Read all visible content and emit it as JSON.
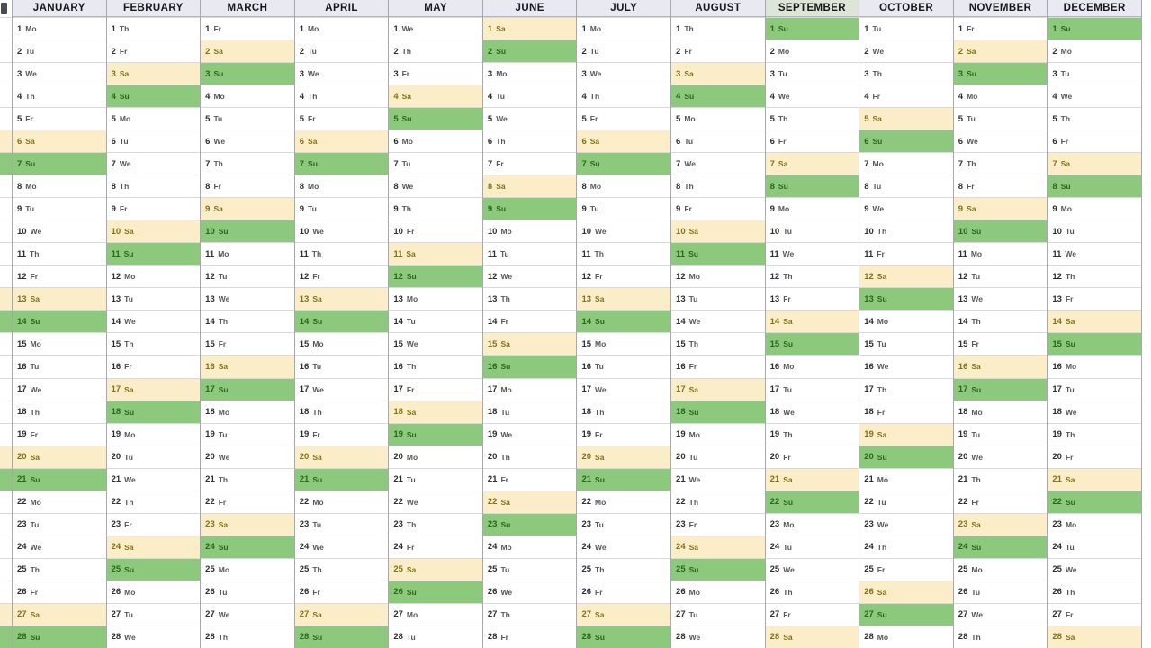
{
  "calendar": {
    "day_numbers": [
      1,
      2,
      3,
      4,
      5,
      6,
      7,
      8,
      9,
      10,
      11,
      12,
      13,
      14,
      15,
      16,
      17,
      18,
      19,
      20,
      21,
      22,
      23,
      24,
      25,
      26,
      27,
      28
    ],
    "months": [
      {
        "name": "JANUARY",
        "weekdays": [
          "Mo",
          "Tu",
          "We",
          "Th",
          "Fr",
          "Sa",
          "Su",
          "Mo",
          "Tu",
          "We",
          "Th",
          "Fr",
          "Sa",
          "Su",
          "Mo",
          "Tu",
          "We",
          "Th",
          "Fr",
          "Sa",
          "Su",
          "Mo",
          "Tu",
          "We",
          "Th",
          "Fr",
          "Sa",
          "Su"
        ]
      },
      {
        "name": "FEBRUARY",
        "weekdays": [
          "Th",
          "Fr",
          "Sa",
          "Su",
          "Mo",
          "Tu",
          "We",
          "Th",
          "Fr",
          "Sa",
          "Su",
          "Mo",
          "Tu",
          "We",
          "Th",
          "Fr",
          "Sa",
          "Su",
          "Mo",
          "Tu",
          "We",
          "Th",
          "Fr",
          "Sa",
          "Su",
          "Mo",
          "Tu",
          "We"
        ]
      },
      {
        "name": "MARCH",
        "weekdays": [
          "Fr",
          "Sa",
          "Su",
          "Mo",
          "Tu",
          "We",
          "Th",
          "Fr",
          "Sa",
          "Su",
          "Mo",
          "Tu",
          "We",
          "Th",
          "Fr",
          "Sa",
          "Su",
          "Mo",
          "Tu",
          "We",
          "Th",
          "Fr",
          "Sa",
          "Su",
          "Mo",
          "Tu",
          "We",
          "Th"
        ]
      },
      {
        "name": "APRIL",
        "weekdays": [
          "Mo",
          "Tu",
          "We",
          "Th",
          "Fr",
          "Sa",
          "Su",
          "Mo",
          "Tu",
          "We",
          "Th",
          "Fr",
          "Sa",
          "Su",
          "Mo",
          "Tu",
          "We",
          "Th",
          "Fr",
          "Sa",
          "Su",
          "Mo",
          "Tu",
          "We",
          "Th",
          "Fr",
          "Sa",
          "Su"
        ]
      },
      {
        "name": "MAY",
        "weekdays": [
          "We",
          "Th",
          "Fr",
          "Sa",
          "Su",
          "Mo",
          "Tu",
          "We",
          "Th",
          "Fr",
          "Sa",
          "Su",
          "Mo",
          "Tu",
          "We",
          "Th",
          "Fr",
          "Sa",
          "Su",
          "Mo",
          "Tu",
          "We",
          "Th",
          "Fr",
          "Sa",
          "Su",
          "Mo",
          "Tu"
        ]
      },
      {
        "name": "JUNE",
        "weekdays": [
          "Sa",
          "Su",
          "Mo",
          "Tu",
          "We",
          "Th",
          "Fr",
          "Sa",
          "Su",
          "Mo",
          "Tu",
          "We",
          "Th",
          "Fr",
          "Sa",
          "Su",
          "Mo",
          "Tu",
          "We",
          "Th",
          "Fr",
          "Sa",
          "Su",
          "Mo",
          "Tu",
          "We",
          "Th",
          "Fr"
        ]
      },
      {
        "name": "JULY",
        "weekdays": [
          "Mo",
          "Tu",
          "We",
          "Th",
          "Fr",
          "Sa",
          "Su",
          "Mo",
          "Tu",
          "We",
          "Th",
          "Fr",
          "Sa",
          "Su",
          "Mo",
          "Tu",
          "We",
          "Th",
          "Fr",
          "Sa",
          "Su",
          "Mo",
          "Tu",
          "We",
          "Th",
          "Fr",
          "Sa",
          "Su"
        ]
      },
      {
        "name": "AUGUST",
        "weekdays": [
          "Th",
          "Fr",
          "Sa",
          "Su",
          "Mo",
          "Tu",
          "We",
          "Th",
          "Fr",
          "Sa",
          "Su",
          "Mo",
          "Tu",
          "We",
          "Th",
          "Fr",
          "Sa",
          "Su",
          "Mo",
          "Tu",
          "We",
          "Th",
          "Fr",
          "Sa",
          "Su",
          "Mo",
          "Tu",
          "We"
        ]
      },
      {
        "name": "SEPTEMBER",
        "header_bg": "#dde6d6",
        "weekdays": [
          "Su",
          "Mo",
          "Tu",
          "We",
          "Th",
          "Fr",
          "Sa",
          "Su",
          "Mo",
          "Tu",
          "We",
          "Th",
          "Fr",
          "Sa",
          "Su",
          "Mo",
          "Tu",
          "We",
          "Th",
          "Fr",
          "Sa",
          "Su",
          "Mo",
          "Tu",
          "We",
          "Th",
          "Fr",
          "Sa"
        ]
      },
      {
        "name": "OCTOBER",
        "weekdays": [
          "Tu",
          "We",
          "Th",
          "Fr",
          "Sa",
          "Su",
          "Mo",
          "Tu",
          "We",
          "Th",
          "Fr",
          "Sa",
          "Su",
          "Mo",
          "Tu",
          "We",
          "Th",
          "Fr",
          "Sa",
          "Su",
          "Mo",
          "Tu",
          "We",
          "Th",
          "Fr",
          "Sa",
          "Su",
          "Mo"
        ]
      },
      {
        "name": "NOVEMBER",
        "weekdays": [
          "Fr",
          "Sa",
          "Su",
          "Mo",
          "Tu",
          "We",
          "Th",
          "Fr",
          "Sa",
          "Su",
          "Mo",
          "Tu",
          "We",
          "Th",
          "Fr",
          "Sa",
          "Su",
          "Mo",
          "Tu",
          "We",
          "Th",
          "Fr",
          "Sa",
          "Su",
          "Mo",
          "Tu",
          "We",
          "Th"
        ]
      },
      {
        "name": "DECEMBER",
        "weekdays": [
          "Su",
          "Mo",
          "Tu",
          "We",
          "Th",
          "Fr",
          "Sa",
          "Su",
          "Mo",
          "Tu",
          "We",
          "Th",
          "Fr",
          "Sa",
          "Su",
          "Mo",
          "Tu",
          "We",
          "Th",
          "Fr",
          "Sa",
          "Su",
          "Mo",
          "Tu",
          "We",
          "Th",
          "Fr",
          "Sa"
        ]
      }
    ],
    "colors": {
      "saturday_row_bg": "#fbedc8",
      "sunday_row_bg": "#8cc97d",
      "saturday_text": "#827117",
      "sunday_text": "#2b661a",
      "month_header_bg": "#e8e9f1",
      "september_header_bg": "#dde6d6",
      "grid_line": "#d8d8dd",
      "column_border": "#a7a7b0",
      "day_number_text": "#2e2e31",
      "weekday_text": "#57575c"
    }
  }
}
